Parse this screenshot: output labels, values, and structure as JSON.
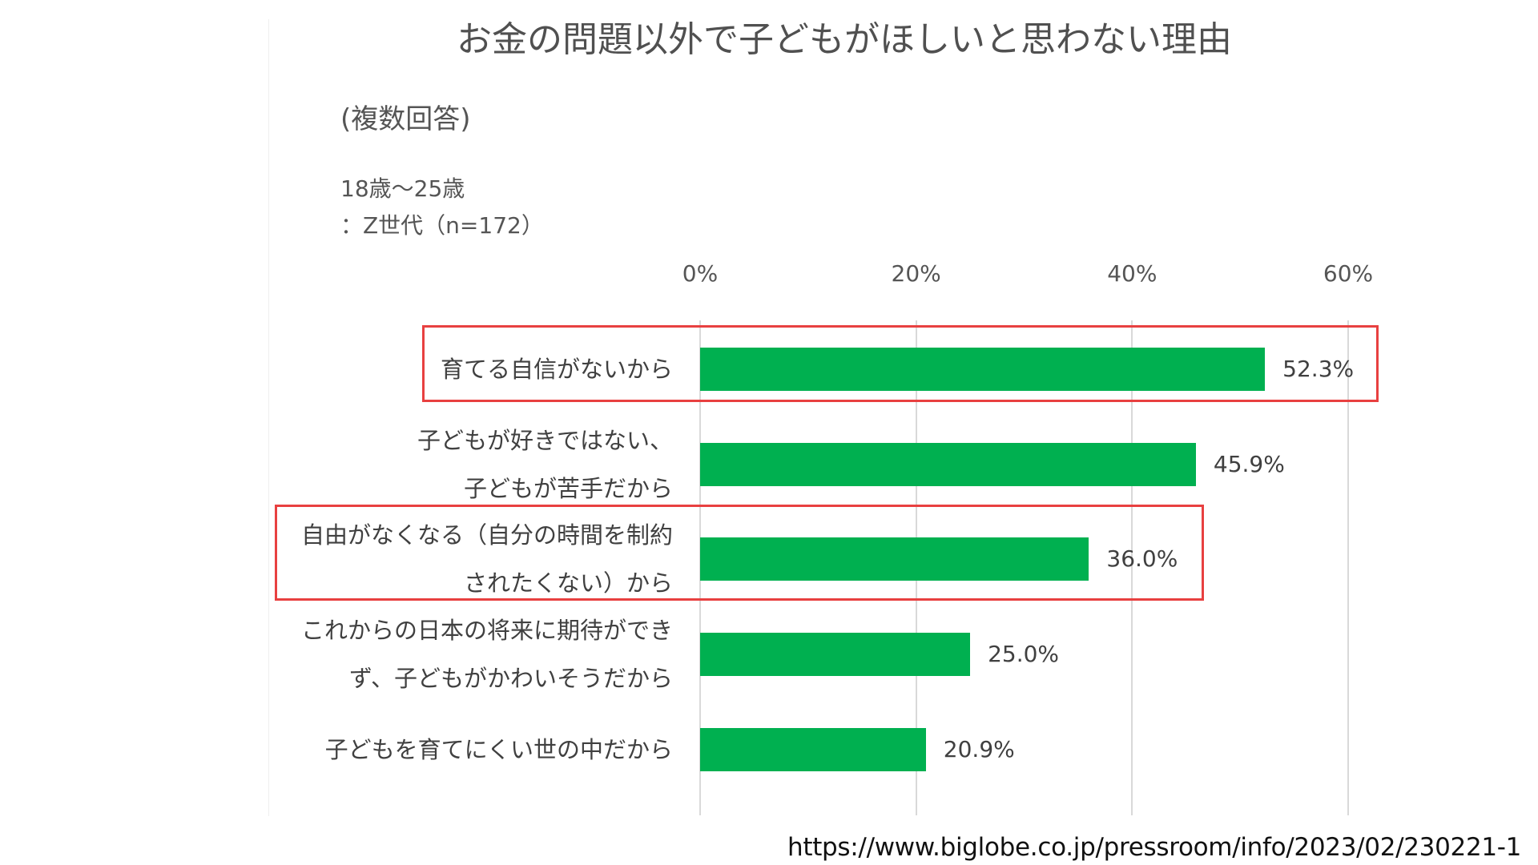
{
  "chart_data": {
    "type": "bar",
    "orientation": "horizontal",
    "title": "お金の問題以外で子どもがほしいと思わない理由",
    "subtitle": "(複数回答)",
    "cohort_label": [
      "18歳～25歳",
      "：Z世代（n=172）"
    ],
    "categories": [
      [
        "育てる自信がないから"
      ],
      [
        "子どもが好きではない、",
        "子どもが苦手だから"
      ],
      [
        "自由がなくなる（自分の時間を制約",
        "されたくない）から"
      ],
      [
        "これからの日本の将来に期待ができ",
        "ず、子どもがかわいそうだから"
      ],
      [
        "子どもを育てにくい世の中だから"
      ]
    ],
    "values": [
      52.3,
      45.9,
      36.0,
      25.0,
      20.9
    ],
    "value_labels": [
      "52.3%",
      "45.9%",
      "36.0%",
      "25.0%",
      "20.9%"
    ],
    "x_ticks": [
      0,
      20,
      40,
      60
    ],
    "x_tick_labels": [
      "0%",
      "20%",
      "40%",
      "60%"
    ],
    "xlim": [
      0,
      60
    ],
    "grid": true,
    "bar_color": "#00b050",
    "highlighted_categories": [
      0,
      2
    ],
    "highlight_color": "#e84040"
  },
  "source_url": "https://www.biglobe.co.jp/pressroom/info/2023/02/230221-1"
}
